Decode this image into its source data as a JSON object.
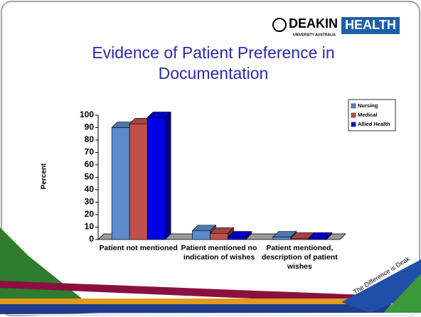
{
  "logo": {
    "name": "DEAKIN",
    "unit": "HEALTH",
    "university": "UNIVERSITY AUSTRALIA"
  },
  "tagline": "The Difference is Deak",
  "chart_data": {
    "type": "bar3d",
    "title": "Evidence of Patient Preference in Documentation",
    "y_label": "Percent",
    "categories": [
      "Patient not mentioned",
      "Patient mentioned no indication of wishes",
      "Patient mentioned, description of patient wishes"
    ],
    "series": [
      {
        "name": "Nursing",
        "color": "#5b8bcc",
        "values": [
          90,
          7,
          2
        ]
      },
      {
        "name": "Medical",
        "color": "#c0504d",
        "values": [
          93,
          5,
          1
        ]
      },
      {
        "name": "Allied Health",
        "color": "#0000e6",
        "values": [
          98,
          2,
          1
        ]
      }
    ],
    "ylim": [
      0,
      100
    ],
    "yticks": [
      0,
      10,
      20,
      30,
      40,
      50,
      60,
      70,
      80,
      90,
      100
    ],
    "legend": "top-right"
  }
}
